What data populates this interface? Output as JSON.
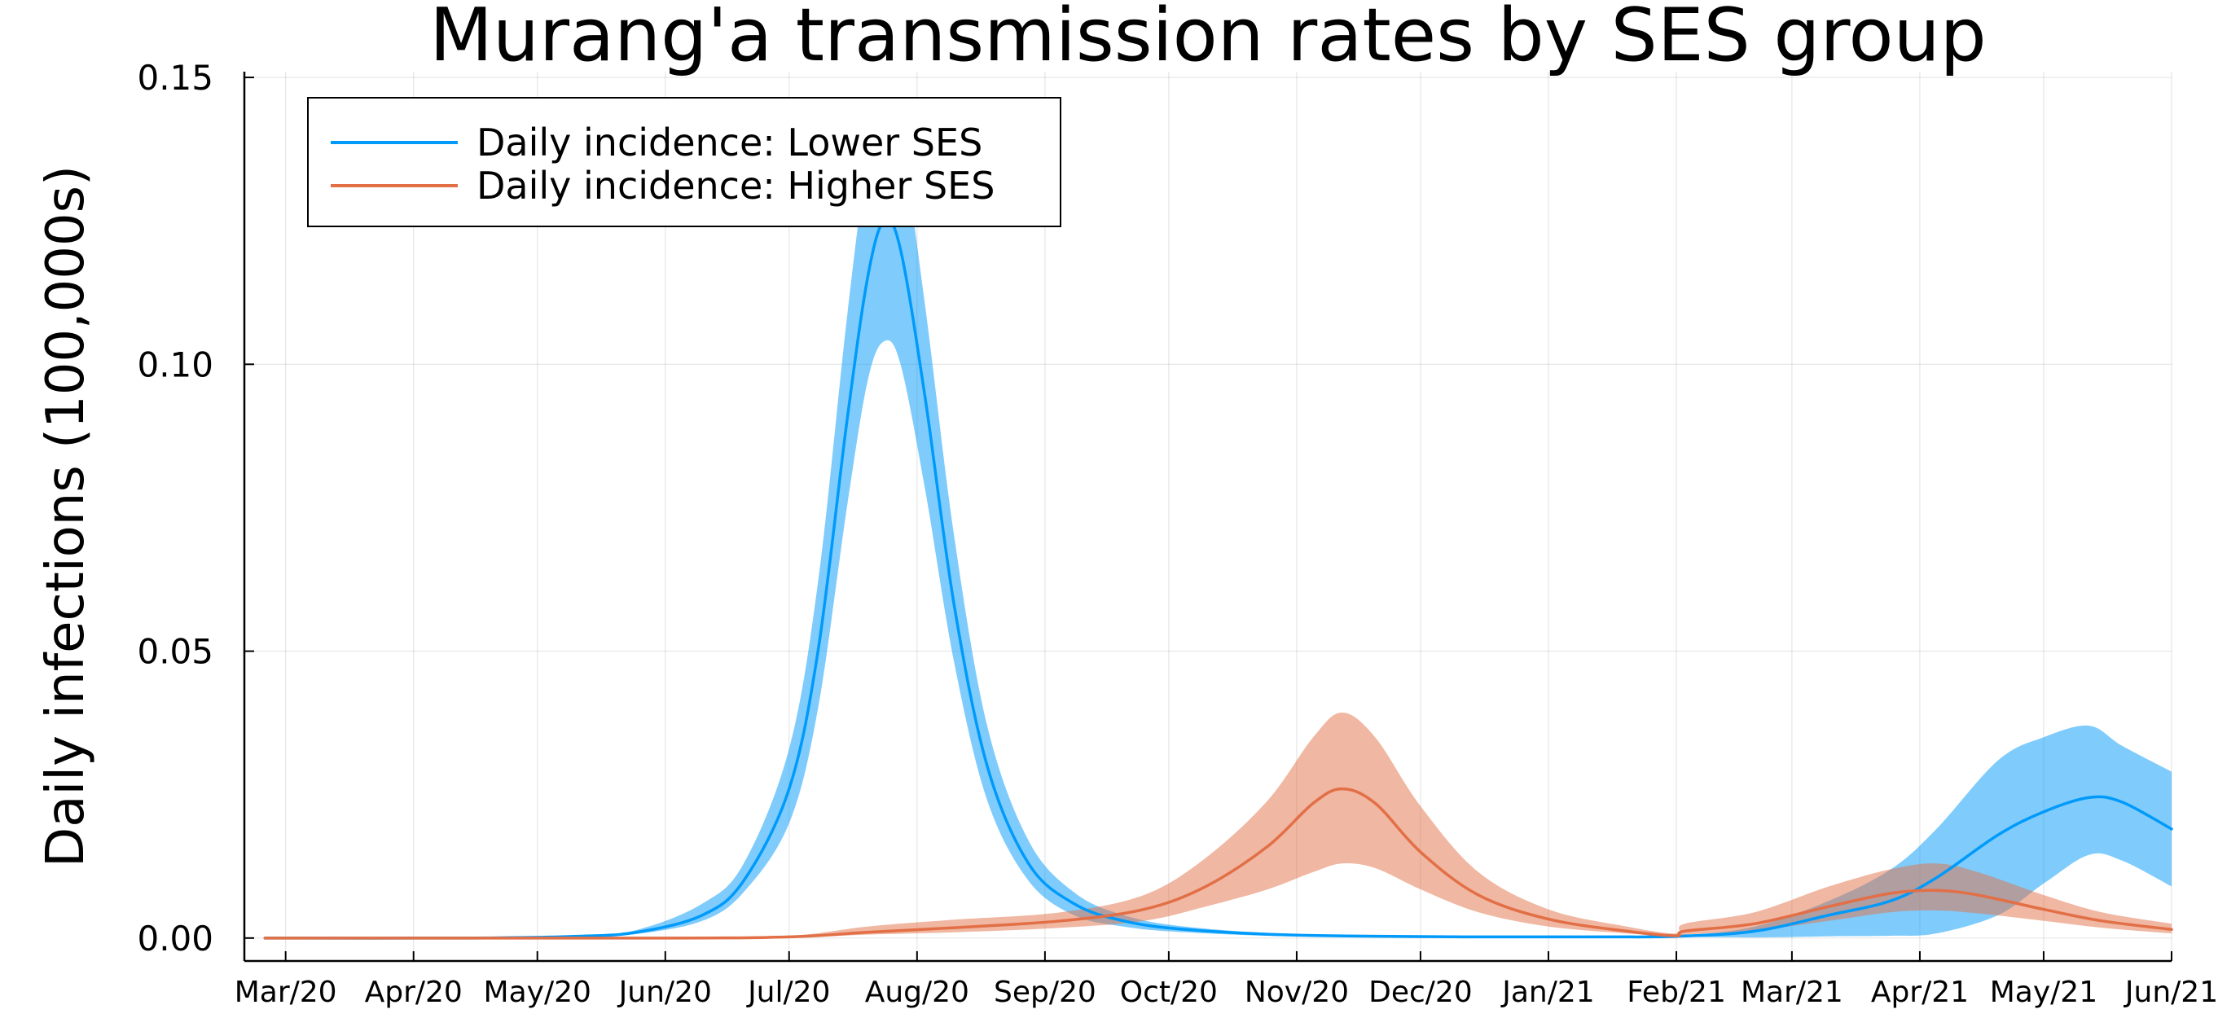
{
  "chart_data": {
    "type": "line",
    "title": "Murang'a transmission rates by SES group",
    "xlabel": "",
    "ylabel": "Daily infections (100,000s)",
    "x_range": [
      "2020-02-20",
      "2021-06-01"
    ],
    "ylim": [
      -0.004,
      0.151
    ],
    "grid": true,
    "legend_position": "top-left",
    "x_ticks": [
      {
        "date": "2020-03-01",
        "label": "Mar/20"
      },
      {
        "date": "2020-04-01",
        "label": "Apr/20"
      },
      {
        "date": "2020-05-01",
        "label": "May/20"
      },
      {
        "date": "2020-06-01",
        "label": "Jun/20"
      },
      {
        "date": "2020-07-01",
        "label": "Jul/20"
      },
      {
        "date": "2020-08-01",
        "label": "Aug/20"
      },
      {
        "date": "2020-09-01",
        "label": "Sep/20"
      },
      {
        "date": "2020-10-01",
        "label": "Oct/20"
      },
      {
        "date": "2020-11-01",
        "label": "Nov/20"
      },
      {
        "date": "2020-12-01",
        "label": "Dec/20"
      },
      {
        "date": "2021-01-01",
        "label": "Jan/21"
      },
      {
        "date": "2021-02-01",
        "label": "Feb/21"
      },
      {
        "date": "2021-03-01",
        "label": "Mar/21"
      },
      {
        "date": "2021-04-01",
        "label": "Apr/21"
      },
      {
        "date": "2021-05-01",
        "label": "May/21"
      },
      {
        "date": "2021-06-01",
        "label": "Jun/21"
      }
    ],
    "y_ticks": [
      {
        "value": 0.0,
        "label": "0.00"
      },
      {
        "value": 0.05,
        "label": "0.05"
      },
      {
        "value": 0.1,
        "label": "0.10"
      },
      {
        "value": 0.15,
        "label": "0.15"
      }
    ],
    "series": [
      {
        "name": "Daily incidence: Lower SES",
        "color": "#009AFA",
        "band_color": "#009AFA",
        "band_opacity": 0.5,
        "points": [
          {
            "x": "2020-02-25",
            "y": 0.0,
            "lower": 0.0,
            "upper": 0.0
          },
          {
            "x": "2020-04-15",
            "y": 0.0,
            "lower": 0.0,
            "upper": 0.0
          },
          {
            "x": "2020-05-10",
            "y": 0.0003,
            "lower": 0.0002,
            "upper": 0.0004
          },
          {
            "x": "2020-05-25",
            "y": 0.001,
            "lower": 0.0007,
            "upper": 0.0014
          },
          {
            "x": "2020-06-10",
            "y": 0.004,
            "lower": 0.003,
            "upper": 0.006
          },
          {
            "x": "2020-06-20",
            "y": 0.01,
            "lower": 0.008,
            "upper": 0.013
          },
          {
            "x": "2020-07-01",
            "y": 0.026,
            "lower": 0.02,
            "upper": 0.033
          },
          {
            "x": "2020-07-08",
            "y": 0.05,
            "lower": 0.04,
            "upper": 0.062
          },
          {
            "x": "2020-07-15",
            "y": 0.09,
            "lower": 0.075,
            "upper": 0.108
          },
          {
            "x": "2020-07-20",
            "y": 0.115,
            "lower": 0.097,
            "upper": 0.136
          },
          {
            "x": "2020-07-24",
            "y": 0.125,
            "lower": 0.104,
            "upper": 0.146
          },
          {
            "x": "2020-07-28",
            "y": 0.12,
            "lower": 0.1,
            "upper": 0.14
          },
          {
            "x": "2020-08-03",
            "y": 0.094,
            "lower": 0.078,
            "upper": 0.11
          },
          {
            "x": "2020-08-10",
            "y": 0.058,
            "lower": 0.048,
            "upper": 0.07
          },
          {
            "x": "2020-08-18",
            "y": 0.03,
            "lower": 0.024,
            "upper": 0.037
          },
          {
            "x": "2020-08-28",
            "y": 0.013,
            "lower": 0.01,
            "upper": 0.017
          },
          {
            "x": "2020-09-08",
            "y": 0.006,
            "lower": 0.004,
            "upper": 0.008
          },
          {
            "x": "2020-09-20",
            "y": 0.003,
            "lower": 0.002,
            "upper": 0.004
          },
          {
            "x": "2020-10-05",
            "y": 0.0015,
            "lower": 0.001,
            "upper": 0.002
          },
          {
            "x": "2020-11-01",
            "y": 0.0005,
            "lower": 0.0003,
            "upper": 0.0007
          },
          {
            "x": "2020-12-15",
            "y": 0.0002,
            "lower": 0.0001,
            "upper": 0.0003
          },
          {
            "x": "2021-01-15",
            "y": 0.0002,
            "lower": 0.0001,
            "upper": 0.0003
          },
          {
            "x": "2021-02-01",
            "y": 0.0003,
            "lower": 0.0002,
            "upper": 0.0004
          },
          {
            "x": "2021-02-20",
            "y": 0.0012,
            "lower": 0.0001,
            "upper": 0.002
          },
          {
            "x": "2021-03-10",
            "y": 0.004,
            "lower": 0.0003,
            "upper": 0.0065
          },
          {
            "x": "2021-03-25",
            "y": 0.0065,
            "lower": 0.0004,
            "upper": 0.012
          },
          {
            "x": "2021-04-05",
            "y": 0.0105,
            "lower": 0.0008,
            "upper": 0.019
          },
          {
            "x": "2021-04-20",
            "y": 0.018,
            "lower": 0.004,
            "upper": 0.031
          },
          {
            "x": "2021-05-01",
            "y": 0.022,
            "lower": 0.0095,
            "upper": 0.035
          },
          {
            "x": "2021-05-12",
            "y": 0.0245,
            "lower": 0.0145,
            "upper": 0.037
          },
          {
            "x": "2021-05-20",
            "y": 0.0237,
            "lower": 0.0135,
            "upper": 0.0335
          },
          {
            "x": "2021-06-01",
            "y": 0.019,
            "lower": 0.009,
            "upper": 0.029
          }
        ]
      },
      {
        "name": "Daily incidence: Higher SES",
        "color": "#E26F46",
        "band_color": "#E26F46",
        "band_opacity": 0.5,
        "points": [
          {
            "x": "2020-02-25",
            "y": 0.0,
            "lower": 0.0,
            "upper": 0.0
          },
          {
            "x": "2020-06-01",
            "y": 0.0,
            "lower": 0.0,
            "upper": 0.0
          },
          {
            "x": "2020-07-01",
            "y": 0.0002,
            "lower": 0.0001,
            "upper": 0.0004
          },
          {
            "x": "2020-07-20",
            "y": 0.001,
            "lower": 0.0006,
            "upper": 0.002
          },
          {
            "x": "2020-08-10",
            "y": 0.0018,
            "lower": 0.001,
            "upper": 0.0032
          },
          {
            "x": "2020-09-05",
            "y": 0.003,
            "lower": 0.0018,
            "upper": 0.0045
          },
          {
            "x": "2020-09-25",
            "y": 0.005,
            "lower": 0.003,
            "upper": 0.0075
          },
          {
            "x": "2020-10-10",
            "y": 0.009,
            "lower": 0.0055,
            "upper": 0.014
          },
          {
            "x": "2020-10-25",
            "y": 0.016,
            "lower": 0.0085,
            "upper": 0.024
          },
          {
            "x": "2020-11-05",
            "y": 0.0235,
            "lower": 0.0115,
            "upper": 0.035
          },
          {
            "x": "2020-11-12",
            "y": 0.026,
            "lower": 0.013,
            "upper": 0.0393
          },
          {
            "x": "2020-11-20",
            "y": 0.0235,
            "lower": 0.0122,
            "upper": 0.035
          },
          {
            "x": "2020-12-01",
            "y": 0.015,
            "lower": 0.0085,
            "upper": 0.023
          },
          {
            "x": "2020-12-15",
            "y": 0.0075,
            "lower": 0.0045,
            "upper": 0.0115
          },
          {
            "x": "2021-01-01",
            "y": 0.0033,
            "lower": 0.002,
            "upper": 0.005
          },
          {
            "x": "2021-01-20",
            "y": 0.0012,
            "lower": 0.0008,
            "upper": 0.002
          },
          {
            "x": "2021-02-01",
            "y": 0.0004,
            "lower": 0.0002,
            "upper": 0.0008
          },
          {
            "x": "2021-02-03",
            "y": 0.0012,
            "lower": 0.0006,
            "upper": 0.0025
          },
          {
            "x": "2021-02-20",
            "y": 0.0025,
            "lower": 0.0013,
            "upper": 0.0045
          },
          {
            "x": "2021-03-10",
            "y": 0.0055,
            "lower": 0.003,
            "upper": 0.009
          },
          {
            "x": "2021-03-25",
            "y": 0.0078,
            "lower": 0.0045,
            "upper": 0.012
          },
          {
            "x": "2021-04-05",
            "y": 0.0083,
            "lower": 0.0048,
            "upper": 0.013
          },
          {
            "x": "2021-04-15",
            "y": 0.0075,
            "lower": 0.0043,
            "upper": 0.0115
          },
          {
            "x": "2021-05-01",
            "y": 0.005,
            "lower": 0.003,
            "upper": 0.0075
          },
          {
            "x": "2021-05-15",
            "y": 0.003,
            "lower": 0.0018,
            "upper": 0.0045
          },
          {
            "x": "2021-06-01",
            "y": 0.0015,
            "lower": 0.0008,
            "upper": 0.0025
          }
        ]
      }
    ]
  }
}
